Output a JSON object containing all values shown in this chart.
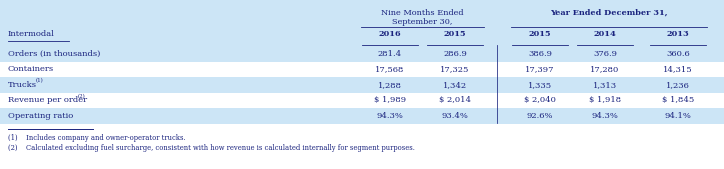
{
  "bg_color": "#cce5f6",
  "white": "#ffffff",
  "text_color": "#1a237e",
  "title_section": "Intermodal",
  "header1_line1": "Nine Months Ended",
  "header1_line2": "September 30,",
  "header2": "Year Ended December 31,",
  "col_headers": [
    "2016",
    "2015",
    "2015",
    "2014",
    "2013"
  ],
  "rows": [
    {
      "label": "Orders (in thousands)",
      "sup": "",
      "values": [
        "281.4",
        "286.9",
        "386.9",
        "376.9",
        "360.6"
      ],
      "bg": "#cce5f6"
    },
    {
      "label": "Containers",
      "sup": "",
      "values": [
        "17,568",
        "17,325",
        "17,397",
        "17,280",
        "14,315"
      ],
      "bg": "#ffffff"
    },
    {
      "label": "Trucks",
      "sup": "(1)",
      "values": [
        "1,288",
        "1,342",
        "1,335",
        "1,313",
        "1,236"
      ],
      "bg": "#cce5f6"
    },
    {
      "label": "Revenue per order",
      "sup": "(2)",
      "values": [
        "$ 1,989",
        "$ 2,014",
        "$ 2,040",
        "$ 1,918",
        "$ 1,845"
      ],
      "bg": "#ffffff"
    },
    {
      "label": "Operating ratio",
      "sup": "",
      "values": [
        "94.3%",
        "93.4%",
        "92.6%",
        "94.3%",
        "94.1%"
      ],
      "bg": "#cce5f6"
    }
  ],
  "footnotes": [
    "(1)    Includes company and owner-operator trucks.",
    "(2)    Calculated excluding fuel surcharge, consistent with how revenue is calculated internally for segment purposes."
  ]
}
